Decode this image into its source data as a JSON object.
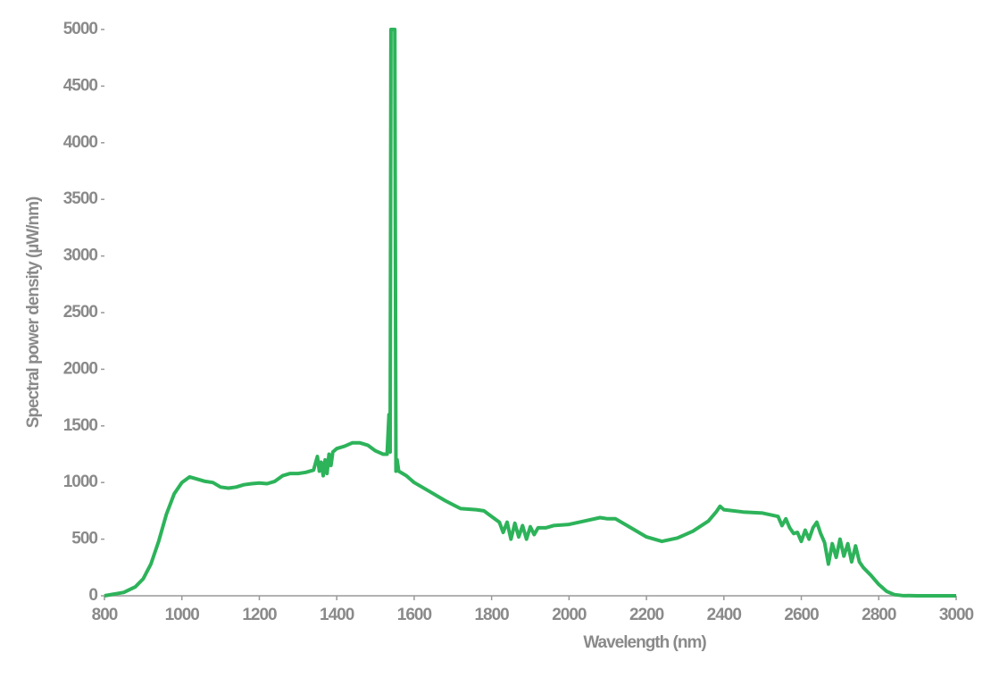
{
  "chart_data": {
    "type": "line",
    "y_label": "Spectral power density (µW/nm)",
    "x_label": "Wavelength (nm)",
    "color": "#2db35a",
    "grid": false,
    "xlim": [
      800,
      3000
    ],
    "xticks": [
      800,
      1000,
      1200,
      1400,
      1600,
      1800,
      2000,
      2200,
      2400,
      2600,
      2800,
      3000
    ],
    "ylim": [
      0,
      5000
    ],
    "yticks": [
      0,
      500,
      1000,
      1500,
      2000,
      2500,
      3000,
      3500,
      4000,
      4500,
      5000
    ],
    "x": [
      800,
      850,
      880,
      900,
      920,
      940,
      960,
      980,
      1000,
      1020,
      1040,
      1060,
      1080,
      1100,
      1120,
      1140,
      1160,
      1180,
      1200,
      1220,
      1240,
      1260,
      1280,
      1300,
      1320,
      1340,
      1350,
      1355,
      1360,
      1365,
      1370,
      1375,
      1380,
      1385,
      1390,
      1400,
      1420,
      1440,
      1460,
      1480,
      1500,
      1520,
      1530,
      1535,
      1538,
      1540,
      1545,
      1550,
      1553,
      1556,
      1560,
      1580,
      1600,
      1640,
      1680,
      1720,
      1760,
      1780,
      1800,
      1820,
      1830,
      1840,
      1850,
      1860,
      1870,
      1880,
      1890,
      1900,
      1910,
      1920,
      1940,
      1960,
      2000,
      2040,
      2080,
      2100,
      2120,
      2150,
      2200,
      2240,
      2280,
      2320,
      2360,
      2380,
      2390,
      2400,
      2450,
      2500,
      2540,
      2550,
      2560,
      2570,
      2580,
      2590,
      2600,
      2610,
      2620,
      2630,
      2640,
      2650,
      2660,
      2670,
      2680,
      2690,
      2700,
      2710,
      2720,
      2730,
      2740,
      2750,
      2760,
      2780,
      2800,
      2820,
      2840,
      2860,
      2900,
      3000
    ],
    "values": [
      0,
      30,
      80,
      150,
      280,
      480,
      720,
      900,
      1000,
      1050,
      1030,
      1010,
      1000,
      960,
      950,
      960,
      980,
      990,
      995,
      990,
      1010,
      1060,
      1080,
      1080,
      1090,
      1110,
      1230,
      1100,
      1180,
      1060,
      1200,
      1080,
      1250,
      1150,
      1270,
      1300,
      1320,
      1350,
      1350,
      1330,
      1280,
      1250,
      1250,
      1600,
      1270,
      5000,
      5000,
      5000,
      1100,
      1200,
      1100,
      1060,
      1000,
      920,
      840,
      770,
      760,
      750,
      700,
      650,
      560,
      650,
      500,
      640,
      520,
      620,
      500,
      610,
      540,
      600,
      600,
      620,
      630,
      660,
      690,
      680,
      680,
      620,
      520,
      480,
      510,
      570,
      660,
      740,
      790,
      760,
      740,
      730,
      700,
      620,
      680,
      600,
      550,
      560,
      480,
      580,
      500,
      600,
      650,
      550,
      470,
      280,
      460,
      340,
      500,
      350,
      460,
      300,
      440,
      300,
      250,
      180,
      100,
      40,
      10,
      2,
      0,
      0
    ]
  }
}
